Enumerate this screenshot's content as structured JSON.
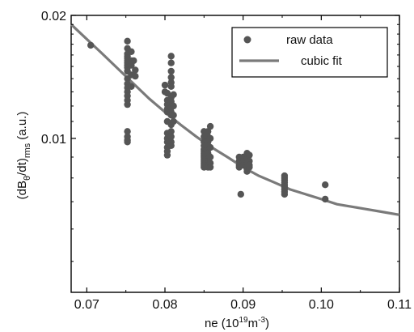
{
  "chart_data": {
    "type": "scatter",
    "title": "",
    "xlabel": "ne (10¹⁹m⁻³)",
    "ylabel": "(dBθ/dt)rms (a.u.)",
    "xlim": [
      0.068,
      0.11
    ],
    "ylim": [
      0.0042,
      0.02
    ],
    "y_scale": "log",
    "x_ticks": [
      0.07,
      0.08,
      0.09,
      0.1,
      0.11
    ],
    "x_tick_labels": [
      "0.07",
      "0.08",
      "0.09",
      "0.10",
      "0.11"
    ],
    "y_tick_labels": [
      {
        "value": 0.02,
        "label": "0.02"
      },
      {
        "value": 0.01,
        "label": "0.01"
      }
    ],
    "grid": false,
    "legend_position": "top-right",
    "series": [
      {
        "name": "raw data",
        "kind": "scatter",
        "color": "#555555",
        "points": [
          [
            0.0705,
            0.0169
          ],
          [
            0.0752,
            0.0173
          ],
          [
            0.0752,
            0.0166
          ],
          [
            0.0752,
            0.0161
          ],
          [
            0.0752,
            0.0159
          ],
          [
            0.0752,
            0.0157
          ],
          [
            0.0752,
            0.0155
          ],
          [
            0.0752,
            0.0153
          ],
          [
            0.0752,
            0.0151
          ],
          [
            0.0752,
            0.0149
          ],
          [
            0.0752,
            0.0146
          ],
          [
            0.0752,
            0.014
          ],
          [
            0.0752,
            0.0136
          ],
          [
            0.0752,
            0.0133
          ],
          [
            0.0752,
            0.013
          ],
          [
            0.0752,
            0.0127
          ],
          [
            0.0752,
            0.0124
          ],
          [
            0.0752,
            0.0121
          ],
          [
            0.0752,
            0.0104
          ],
          [
            0.0752,
            0.0101
          ],
          [
            0.0752,
            0.0099
          ],
          [
            0.0752,
            0.0098
          ],
          [
            0.0757,
            0.0163
          ],
          [
            0.0757,
            0.0155
          ],
          [
            0.0757,
            0.0151
          ],
          [
            0.0757,
            0.0143
          ],
          [
            0.0757,
            0.0134
          ],
          [
            0.076,
            0.0155
          ],
          [
            0.0762,
            0.0147
          ],
          [
            0.0762,
            0.0142
          ],
          [
            0.08,
            0.0135
          ],
          [
            0.08,
            0.013
          ],
          [
            0.0803,
            0.0129
          ],
          [
            0.0803,
            0.0124
          ],
          [
            0.0803,
            0.0121
          ],
          [
            0.0803,
            0.0118
          ],
          [
            0.0803,
            0.0116
          ],
          [
            0.0803,
            0.011
          ],
          [
            0.0803,
            0.0103
          ],
          [
            0.0803,
            0.01
          ],
          [
            0.0803,
            0.0098
          ],
          [
            0.0803,
            0.0095
          ],
          [
            0.0803,
            0.0093
          ],
          [
            0.0803,
            0.0091
          ],
          [
            0.0808,
            0.0159
          ],
          [
            0.0808,
            0.0153
          ],
          [
            0.0808,
            0.0146
          ],
          [
            0.0808,
            0.0141
          ],
          [
            0.0808,
            0.0137
          ],
          [
            0.0808,
            0.0134
          ],
          [
            0.0808,
            0.0126
          ],
          [
            0.0808,
            0.0123
          ],
          [
            0.0808,
            0.0119
          ],
          [
            0.0808,
            0.0116
          ],
          [
            0.0808,
            0.0114
          ],
          [
            0.0808,
            0.0108
          ],
          [
            0.0808,
            0.0104
          ],
          [
            0.0808,
            0.0101
          ],
          [
            0.0808,
            0.0098
          ],
          [
            0.0808,
            0.0096
          ],
          [
            0.0811,
            0.0128
          ],
          [
            0.0811,
            0.012
          ],
          [
            0.0811,
            0.0114
          ],
          [
            0.0811,
            0.011
          ],
          [
            0.085,
            0.0104
          ],
          [
            0.085,
            0.0101
          ],
          [
            0.085,
            0.0098
          ],
          [
            0.085,
            0.0096
          ],
          [
            0.085,
            0.0094
          ],
          [
            0.085,
            0.0093
          ],
          [
            0.085,
            0.0092
          ],
          [
            0.085,
            0.0091
          ],
          [
            0.085,
            0.009
          ],
          [
            0.085,
            0.0089
          ],
          [
            0.085,
            0.0088
          ],
          [
            0.085,
            0.0087
          ],
          [
            0.085,
            0.0086
          ],
          [
            0.085,
            0.0085
          ],
          [
            0.0855,
            0.0104
          ],
          [
            0.0855,
            0.0101
          ],
          [
            0.0855,
            0.0098
          ],
          [
            0.0855,
            0.0096
          ],
          [
            0.0855,
            0.0094
          ],
          [
            0.0855,
            0.0092
          ],
          [
            0.0855,
            0.009
          ],
          [
            0.0855,
            0.0089
          ],
          [
            0.0855,
            0.0088
          ],
          [
            0.0855,
            0.0087
          ],
          [
            0.0855,
            0.0086
          ],
          [
            0.0855,
            0.0085
          ],
          [
            0.0858,
            0.0107
          ],
          [
            0.0858,
            0.01
          ],
          [
            0.0858,
            0.0095
          ],
          [
            0.0858,
            0.009
          ],
          [
            0.0858,
            0.0087
          ],
          [
            0.0858,
            0.0085
          ],
          [
            0.0895,
            0.009
          ],
          [
            0.0895,
            0.0088
          ],
          [
            0.0895,
            0.0086
          ],
          [
            0.0895,
            0.0085
          ],
          [
            0.0897,
            0.0073
          ],
          [
            0.09,
            0.009
          ],
          [
            0.09,
            0.0088
          ],
          [
            0.09,
            0.0087
          ],
          [
            0.09,
            0.0086
          ],
          [
            0.0905,
            0.0092
          ],
          [
            0.0905,
            0.009
          ],
          [
            0.0905,
            0.0089
          ],
          [
            0.0905,
            0.0087
          ],
          [
            0.0905,
            0.0086
          ],
          [
            0.0905,
            0.0085
          ],
          [
            0.0905,
            0.0084
          ],
          [
            0.0905,
            0.0083
          ],
          [
            0.0908,
            0.0091
          ],
          [
            0.0908,
            0.0088
          ],
          [
            0.0908,
            0.0086
          ],
          [
            0.0908,
            0.0085
          ],
          [
            0.0953,
            0.0081
          ],
          [
            0.0953,
            0.008
          ],
          [
            0.0953,
            0.0079
          ],
          [
            0.0953,
            0.0078
          ],
          [
            0.0953,
            0.0077
          ],
          [
            0.0953,
            0.0076
          ],
          [
            0.0953,
            0.0075
          ],
          [
            0.0953,
            0.0074
          ],
          [
            0.0953,
            0.0073
          ],
          [
            0.1005,
            0.0077
          ],
          [
            0.1005,
            0.0071
          ]
        ]
      },
      {
        "name": "cubic fit",
        "kind": "line",
        "color": "#7a7a7a",
        "x": [
          0.068,
          0.07,
          0.072,
          0.074,
          0.076,
          0.078,
          0.08,
          0.082,
          0.084,
          0.086,
          0.088,
          0.09,
          0.092,
          0.094,
          0.096,
          0.098,
          0.1,
          0.102,
          0.104,
          0.106,
          0.108,
          0.11
        ],
        "y": [
          0.019,
          0.0175,
          0.0161,
          0.0148,
          0.0136,
          0.0125,
          0.0116,
          0.0108,
          0.0101,
          0.0095,
          0.009,
          0.0085,
          0.0081,
          0.0078,
          0.0075,
          0.0073,
          0.0071,
          0.0069,
          0.0068,
          0.0067,
          0.0066,
          0.0065
        ]
      }
    ]
  }
}
